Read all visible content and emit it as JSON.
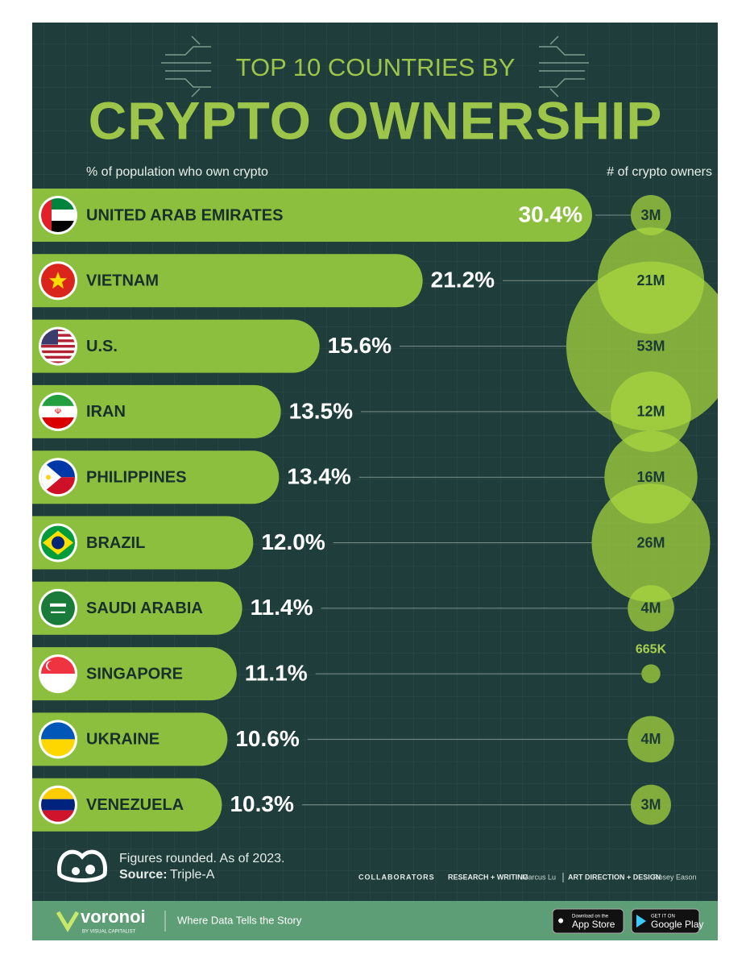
{
  "chart_data": {
    "type": "bar",
    "pretitle": "TOP 10 COUNTRIES BY",
    "title": "CRYPTO OWNERSHIP",
    "x_label": "% of population who own crypto",
    "categories": [
      "UNITED ARAB EMIRATES",
      "VIETNAM",
      "U.S.",
      "IRAN",
      "PHILIPPINES",
      "BRAZIL",
      "SAUDI ARABIA",
      "SINGAPORE",
      "UKRAINE",
      "VENEZUELA"
    ],
    "values": [
      30.4,
      21.2,
      15.6,
      13.5,
      13.4,
      12.0,
      11.4,
      11.1,
      10.6,
      10.3
    ],
    "value_labels": [
      "30.4%",
      "21.2%",
      "15.6%",
      "13.5%",
      "13.4%",
      "12.0%",
      "11.4%",
      "11.1%",
      "10.6%",
      "10.3%"
    ],
    "color": "#8dbf3f",
    "bubbles": {
      "label": "# of crypto owners",
      "color": "#a9d83e",
      "values": [
        3000000,
        21000000,
        53000000,
        12000000,
        16000000,
        26000000,
        4000000,
        665000,
        4000000,
        3000000
      ],
      "value_labels": [
        "3M",
        "21M",
        "53M",
        "12M",
        "16M",
        "26M",
        "4M",
        "665K",
        "4M",
        "3M"
      ]
    }
  },
  "footer": {
    "note": "Figures rounded. As of 2023.",
    "source_label": "Source:",
    "source": "Triple-A",
    "collaborators": "COLLABORATORS",
    "research_label": "RESEARCH + WRITING",
    "research": "Marcus Lu",
    "design_label": "ART DIRECTION + DESIGN",
    "design": "Rosey Eason",
    "brand": "voronoi",
    "brand_sub": "BY VISUAL CAPITALIST",
    "tagline": "Where Data Tells the Story",
    "appstore_small": "Download on the",
    "appstore": "App Store",
    "googleplay_small": "GET IT ON",
    "googleplay": "Google Play"
  }
}
